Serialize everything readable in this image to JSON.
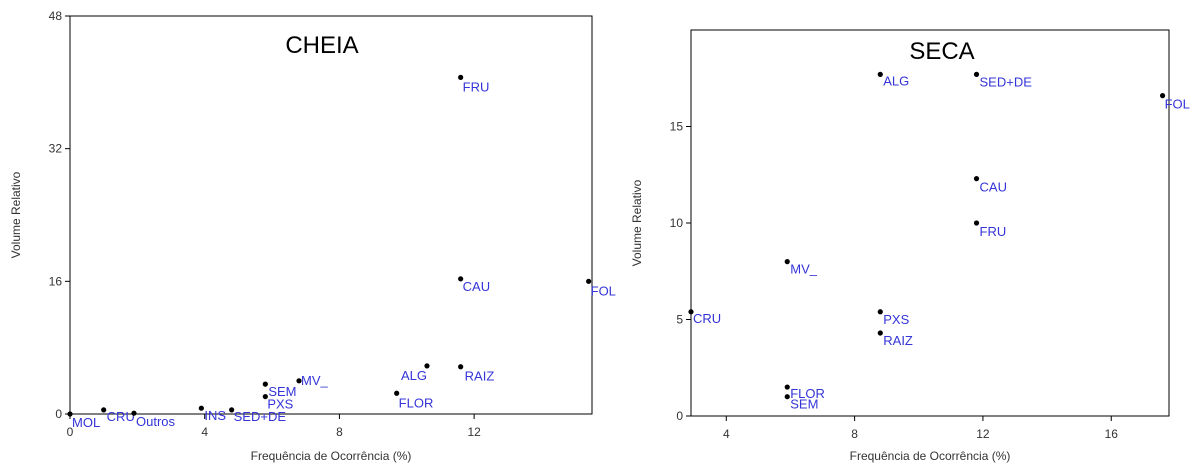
{
  "chart_data": [
    {
      "type": "scatter",
      "title": "CHEIA",
      "xlabel": "Frequência de Ocorrência (%)",
      "ylabel": "Volume Relativo",
      "xlim": [
        0,
        15.5
      ],
      "ylim": [
        0,
        48
      ],
      "xticks": [
        0,
        4,
        8,
        12
      ],
      "yticks": [
        0,
        16,
        32,
        48
      ],
      "points": [
        {
          "label": "FRU",
          "x": 11.6,
          "y": 40.6
        },
        {
          "label": "CAU",
          "x": 11.6,
          "y": 16.3
        },
        {
          "label": "FOL",
          "x": 15.4,
          "y": 16.0
        },
        {
          "label": "ALG",
          "x": 10.6,
          "y": 5.8
        },
        {
          "label": "RAIZ",
          "x": 11.6,
          "y": 5.7
        },
        {
          "label": "MV_",
          "x": 6.8,
          "y": 4.0
        },
        {
          "label": "SEM",
          "x": 5.8,
          "y": 3.6
        },
        {
          "label": "FLOR",
          "x": 9.7,
          "y": 2.5
        },
        {
          "label": "PXS",
          "x": 5.8,
          "y": 2.1
        },
        {
          "label": "INS",
          "x": 3.9,
          "y": 0.7
        },
        {
          "label": "SED+DE",
          "x": 4.8,
          "y": 0.5
        },
        {
          "label": "CRU",
          "x": 1.0,
          "y": 0.5
        },
        {
          "label": "Outros",
          "x": 1.9,
          "y": 0.1
        },
        {
          "label": "MOL",
          "x": 0.0,
          "y": 0.0
        }
      ]
    },
    {
      "type": "scatter",
      "title": "SECA",
      "xlabel": "Frequência de Ocorrência (%)",
      "ylabel": "Volume Relativo",
      "xlim": [
        2.9,
        17.8
      ],
      "ylim": [
        0,
        20
      ],
      "xticks": [
        4,
        8,
        12,
        16
      ],
      "yticks": [
        0,
        5,
        10,
        15
      ],
      "points": [
        {
          "label": "ALG",
          "x": 8.8,
          "y": 17.7
        },
        {
          "label": "SED+DE",
          "x": 11.8,
          "y": 17.7
        },
        {
          "label": "FOL",
          "x": 17.6,
          "y": 16.6
        },
        {
          "label": "CAU",
          "x": 11.8,
          "y": 12.3
        },
        {
          "label": "FRU",
          "x": 11.8,
          "y": 10.0
        },
        {
          "label": "MV_",
          "x": 5.9,
          "y": 8.0
        },
        {
          "label": "CRU",
          "x": 2.9,
          "y": 5.4
        },
        {
          "label": "PXS",
          "x": 8.8,
          "y": 5.4
        },
        {
          "label": "RAIZ",
          "x": 8.8,
          "y": 4.3
        },
        {
          "label": "FLOR",
          "x": 5.9,
          "y": 1.5
        },
        {
          "label": "SEM",
          "x": 5.9,
          "y": 1.0
        }
      ]
    }
  ]
}
